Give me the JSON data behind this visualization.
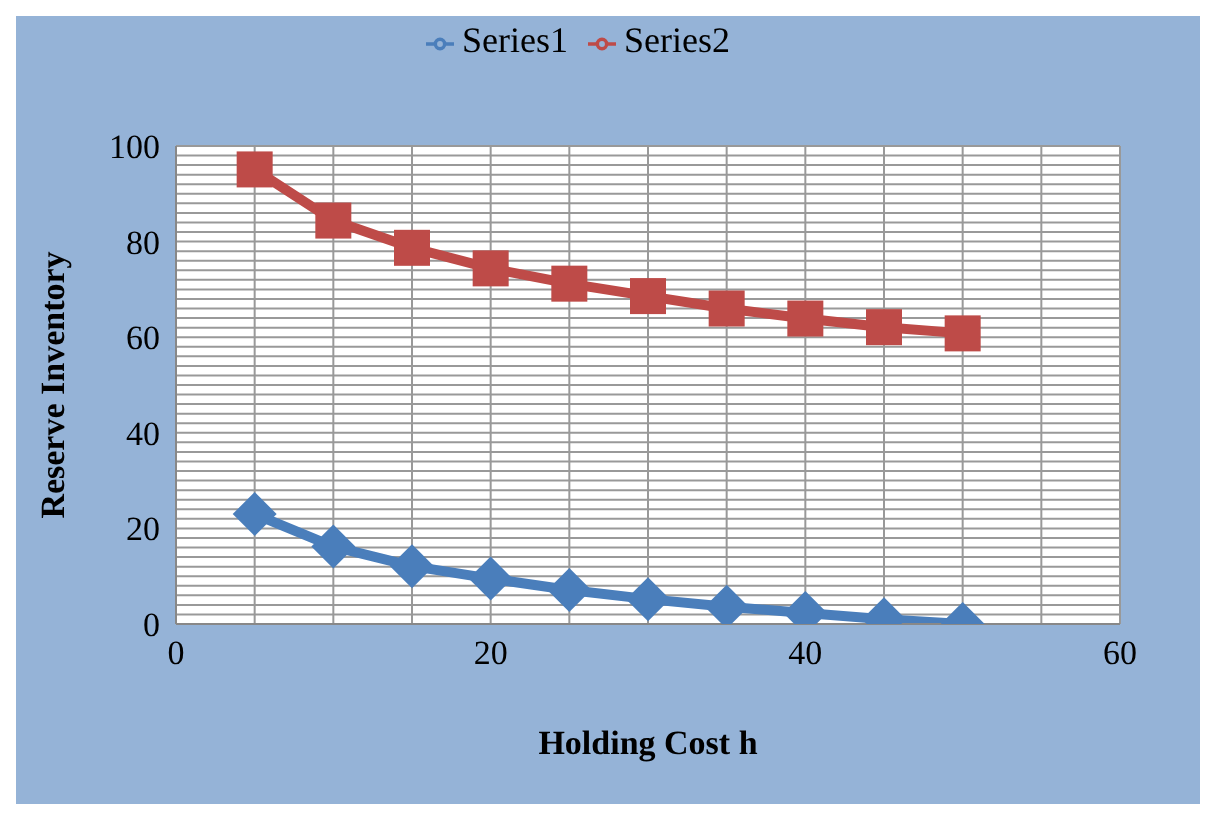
{
  "chart_data": {
    "type": "line",
    "xlabel": "Holding Cost h",
    "ylabel": "Reserve Inventory",
    "x": [
      5,
      10,
      15,
      20,
      25,
      30,
      35,
      40,
      45,
      50
    ],
    "series": [
      {
        "name": "Series1",
        "color": "#4a7ebb",
        "values": [
          23,
          16.2,
          12.1,
          9.5,
          7.1,
          5.2,
          3.6,
          2.3,
          1,
          0
        ],
        "marker": "diamond"
      },
      {
        "name": "Series2",
        "color": "#be4b48",
        "values": [
          95.1,
          84.4,
          78.7,
          74.4,
          71.2,
          68.6,
          66,
          63.9,
          62.1,
          60.8
        ],
        "marker": "square"
      }
    ],
    "xlim": [
      0,
      60
    ],
    "xticks": [
      0,
      {
        "value": 5,
        "label": null
      },
      {
        "value": 10,
        "label": null
      },
      {
        "value": 15,
        "label": null
      },
      20,
      {
        "value": 25,
        "label": null
      },
      {
        "value": 30,
        "label": null
      },
      {
        "value": 35,
        "label": null
      },
      40,
      {
        "value": 45,
        "label": null
      },
      {
        "value": 50,
        "label": null
      },
      {
        "value": 55,
        "label": null
      },
      60
    ],
    "ylim": [
      0,
      100
    ],
    "yticks": [
      0,
      {
        "value": 2,
        "label": null
      },
      {
        "value": 4,
        "label": null
      },
      {
        "value": 6,
        "label": null
      },
      {
        "value": 8,
        "label": null
      },
      {
        "value": 10,
        "label": null
      },
      {
        "value": 12,
        "label": null
      },
      {
        "value": 14,
        "label": null
      },
      {
        "value": 16,
        "label": null
      },
      {
        "value": 18,
        "label": null
      },
      20,
      {
        "value": 22,
        "label": null
      },
      {
        "value": 24,
        "label": null
      },
      {
        "value": 26,
        "label": null
      },
      {
        "value": 28,
        "label": null
      },
      {
        "value": 30,
        "label": null
      },
      {
        "value": 32,
        "label": null
      },
      {
        "value": 34,
        "label": null
      },
      {
        "value": 36,
        "label": null
      },
      {
        "value": 38,
        "label": null
      },
      40,
      {
        "value": 42,
        "label": null
      },
      {
        "value": 44,
        "label": null
      },
      {
        "value": 46,
        "label": null
      },
      {
        "value": 48,
        "label": null
      },
      {
        "value": 50,
        "label": null
      },
      {
        "value": 52,
        "label": null
      },
      {
        "value": 54,
        "label": null
      },
      {
        "value": 56,
        "label": null
      },
      {
        "value": 58,
        "label": null
      },
      60,
      {
        "value": 62,
        "label": null
      },
      {
        "value": 64,
        "label": null
      },
      {
        "value": 66,
        "label": null
      },
      {
        "value": 68,
        "label": null
      },
      {
        "value": 70,
        "label": null
      },
      {
        "value": 72,
        "label": null
      },
      {
        "value": 74,
        "label": null
      },
      {
        "value": 76,
        "label": null
      },
      {
        "value": 78,
        "label": null
      },
      80,
      {
        "value": 82,
        "label": null
      },
      {
        "value": 84,
        "label": null
      },
      {
        "value": 86,
        "label": null
      },
      {
        "value": 88,
        "label": null
      },
      {
        "value": 90,
        "label": null
      },
      {
        "value": 92,
        "label": null
      },
      {
        "value": 94,
        "label": null
      },
      {
        "value": 96,
        "label": null
      },
      {
        "value": 98,
        "label": null
      },
      100
    ],
    "grid": true,
    "legend": "top",
    "line_style": "solid"
  }
}
